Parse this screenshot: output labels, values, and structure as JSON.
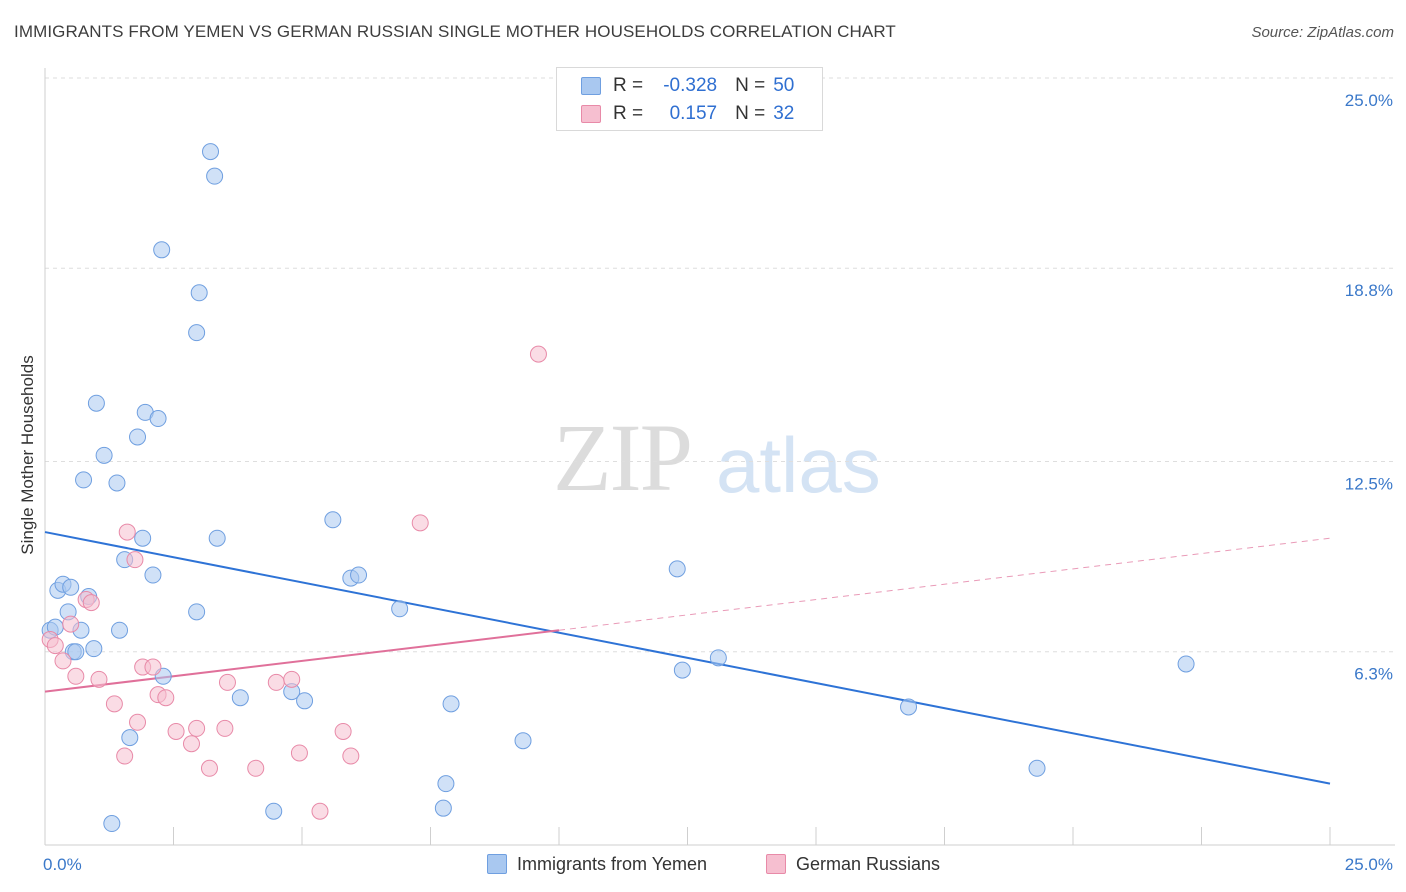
{
  "title": "IMMIGRANTS FROM YEMEN VS GERMAN RUSSIAN SINGLE MOTHER HOUSEHOLDS CORRELATION CHART",
  "source": "Source: ZipAtlas.com",
  "watermark": {
    "part1": "ZIP",
    "part2": "atlas"
  },
  "legend": {
    "rows": [
      {
        "r_label": "R =",
        "r_value": "-0.328",
        "n_label": "N =",
        "n_value": "50",
        "color": "#a9c8f0",
        "border": "#6f9fe0"
      },
      {
        "r_label": "R =",
        "r_value": "0.157",
        "n_label": "N =",
        "n_value": "32",
        "color": "#f6bfd0",
        "border": "#e88aa8"
      }
    ]
  },
  "bottom_legend": [
    {
      "label": "Immigrants from Yemen",
      "color": "#a9c8f0",
      "border": "#6f9fe0"
    },
    {
      "label": "German Russians",
      "color": "#f6bfd0",
      "border": "#e88aa8"
    }
  ],
  "chart_data": {
    "type": "scatter",
    "title": "IMMIGRANTS FROM YEMEN VS GERMAN RUSSIAN SINGLE MOTHER HOUSEHOLDS CORRELATION CHART",
    "xlabel": "",
    "ylabel": "Single Mother Households",
    "xlim": [
      0,
      25
    ],
    "ylim": [
      0,
      25
    ],
    "x_tick_labels": [
      "0.0%",
      "25.0%"
    ],
    "y_tick_labels": [
      "6.3%",
      "12.5%",
      "18.8%",
      "25.0%"
    ],
    "y_tick_values": [
      6.3,
      12.5,
      18.8,
      25.0
    ],
    "grid": "horizontal dashed",
    "legend_position": "top-center",
    "series": [
      {
        "name": "Immigrants from Yemen",
        "color": "#a9c8f0",
        "stroke": "#6f9fe0",
        "trend_color": "#2e73d6",
        "trend": {
          "x": [
            0,
            25
          ],
          "y": [
            10.2,
            2.0
          ],
          "dashed_from": null
        },
        "points": [
          [
            0.1,
            7.0
          ],
          [
            0.25,
            8.3
          ],
          [
            0.35,
            8.5
          ],
          [
            0.45,
            7.6
          ],
          [
            0.55,
            6.3
          ],
          [
            0.7,
            7.0
          ],
          [
            0.85,
            8.1
          ],
          [
            0.95,
            6.4
          ],
          [
            1.0,
            14.4
          ],
          [
            1.15,
            12.7
          ],
          [
            0.75,
            11.9
          ],
          [
            1.4,
            11.8
          ],
          [
            1.3,
            0.7
          ],
          [
            1.45,
            7.0
          ],
          [
            1.55,
            9.3
          ],
          [
            1.65,
            3.5
          ],
          [
            1.8,
            13.3
          ],
          [
            1.9,
            10.0
          ],
          [
            1.95,
            14.1
          ],
          [
            2.1,
            8.8
          ],
          [
            2.2,
            13.9
          ],
          [
            2.3,
            5.5
          ],
          [
            2.27,
            19.4
          ],
          [
            2.95,
            16.7
          ],
          [
            3.0,
            18.0
          ],
          [
            2.95,
            7.6
          ],
          [
            3.22,
            22.6
          ],
          [
            3.3,
            21.8
          ],
          [
            3.35,
            10.0
          ],
          [
            3.8,
            4.8
          ],
          [
            4.45,
            1.1
          ],
          [
            4.8,
            5.0
          ],
          [
            5.05,
            4.7
          ],
          [
            5.6,
            10.6
          ],
          [
            5.95,
            8.7
          ],
          [
            6.1,
            8.8
          ],
          [
            6.9,
            7.7
          ],
          [
            7.8,
            2.0
          ],
          [
            7.75,
            1.2
          ],
          [
            7.9,
            4.6
          ],
          [
            9.3,
            3.4
          ],
          [
            12.3,
            9.0
          ],
          [
            12.4,
            5.7
          ],
          [
            13.1,
            6.1
          ],
          [
            16.8,
            4.5
          ],
          [
            19.3,
            2.5
          ],
          [
            22.2,
            5.9
          ],
          [
            0.2,
            7.1
          ],
          [
            0.5,
            8.4
          ],
          [
            0.6,
            6.3
          ]
        ]
      },
      {
        "name": "German Russians",
        "color": "#f6bfd0",
        "stroke": "#e88aa8",
        "trend_color": "#e0709a",
        "trend": {
          "x": [
            0,
            25
          ],
          "y": [
            5.0,
            10.0
          ],
          "dashed_from": 10.0
        },
        "points": [
          [
            0.1,
            6.7
          ],
          [
            0.2,
            6.5
          ],
          [
            0.35,
            6.0
          ],
          [
            0.5,
            7.2
          ],
          [
            0.6,
            5.5
          ],
          [
            0.8,
            8.0
          ],
          [
            0.9,
            7.9
          ],
          [
            1.05,
            5.4
          ],
          [
            1.35,
            4.6
          ],
          [
            1.55,
            2.9
          ],
          [
            1.6,
            10.2
          ],
          [
            1.75,
            9.3
          ],
          [
            1.8,
            4.0
          ],
          [
            1.9,
            5.8
          ],
          [
            2.1,
            5.8
          ],
          [
            2.2,
            4.9
          ],
          [
            2.35,
            4.8
          ],
          [
            2.55,
            3.7
          ],
          [
            2.85,
            3.3
          ],
          [
            2.95,
            3.8
          ],
          [
            3.2,
            2.5
          ],
          [
            3.5,
            3.8
          ],
          [
            3.55,
            5.3
          ],
          [
            4.1,
            2.5
          ],
          [
            4.5,
            5.3
          ],
          [
            4.8,
            5.4
          ],
          [
            4.95,
            3.0
          ],
          [
            5.35,
            1.1
          ],
          [
            5.8,
            3.7
          ],
          [
            5.95,
            2.9
          ],
          [
            7.3,
            10.5
          ],
          [
            9.6,
            16.0
          ]
        ]
      }
    ]
  }
}
